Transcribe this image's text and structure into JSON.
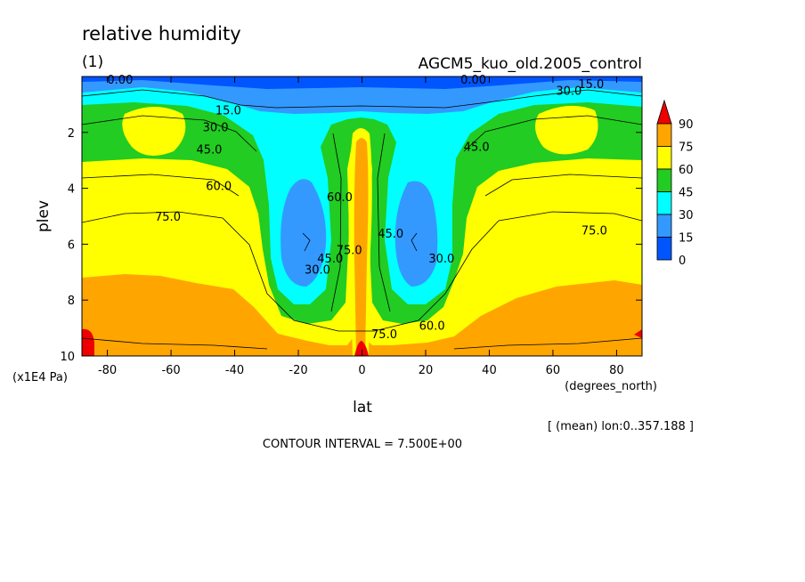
{
  "header": {
    "title": "relative humidity",
    "panel": "(1)",
    "experiment": "AGCM5_kuo_old.2005_control",
    "mean_note": "[ (mean) lon:0..357.188 ]",
    "contour_interval": "CONTOUR INTERVAL = 7.500E+00"
  },
  "chart_data": {
    "type": "heatmap",
    "xlabel": "lat",
    "x_unit": "(degrees_north)",
    "ylabel": "plev",
    "y_unit": "(x1E4 Pa)",
    "xlim": [
      -88,
      88
    ],
    "ylim": [
      10,
      0
    ],
    "x_ticks": [
      -80,
      -60,
      -40,
      -20,
      0,
      20,
      40,
      60,
      80
    ],
    "y_ticks": [
      2,
      4,
      6,
      8,
      10
    ],
    "levels": [
      0,
      15,
      30,
      45,
      60,
      75,
      90
    ],
    "colorbar": [
      {
        "label": "90",
        "color": "#ee0000"
      },
      {
        "label": "75",
        "color": "#ffa500"
      },
      {
        "label": "60",
        "color": "#ffff00"
      },
      {
        "label": "45",
        "color": "#22cc22"
      },
      {
        "label": "30",
        "color": "#00ffff"
      },
      {
        "label": "15",
        "color": "#3399ff"
      },
      {
        "label": "0",
        "color": "#0055ff"
      }
    ],
    "contour_labels": [
      {
        "text": "0.00",
        "lat": -76,
        "plev": 0.1
      },
      {
        "text": "0.00",
        "lat": 35,
        "plev": 0.1
      },
      {
        "text": "15.0",
        "lat": 72,
        "plev": 0.25
      },
      {
        "text": "30.0",
        "lat": 65,
        "plev": 0.5
      },
      {
        "text": "15.0",
        "lat": -42,
        "plev": 1.2
      },
      {
        "text": "30.0",
        "lat": -46,
        "plev": 1.8
      },
      {
        "text": "45.0",
        "lat": -48,
        "plev": 2.6
      },
      {
        "text": "45.0",
        "lat": 36,
        "plev": 2.5
      },
      {
        "text": "60.0",
        "lat": -45,
        "plev": 3.9
      },
      {
        "text": "75.0",
        "lat": -61,
        "plev": 5.0
      },
      {
        "text": "75.0",
        "lat": 73,
        "plev": 5.5
      },
      {
        "text": "60.0",
        "lat": -7,
        "plev": 4.3
      },
      {
        "text": "30.0",
        "lat": -14,
        "plev": 6.9
      },
      {
        "text": "45.0",
        "lat": -10,
        "plev": 6.5
      },
      {
        "text": "75.0",
        "lat": -4,
        "plev": 6.2
      },
      {
        "text": "45.0",
        "lat": 9,
        "plev": 5.6
      },
      {
        "text": "30.0",
        "lat": 25,
        "plev": 6.5
      },
      {
        "text": "60.0",
        "lat": 22,
        "plev": 8.9
      },
      {
        "text": "75.0",
        "lat": 7,
        "plev": 9.2
      }
    ]
  }
}
